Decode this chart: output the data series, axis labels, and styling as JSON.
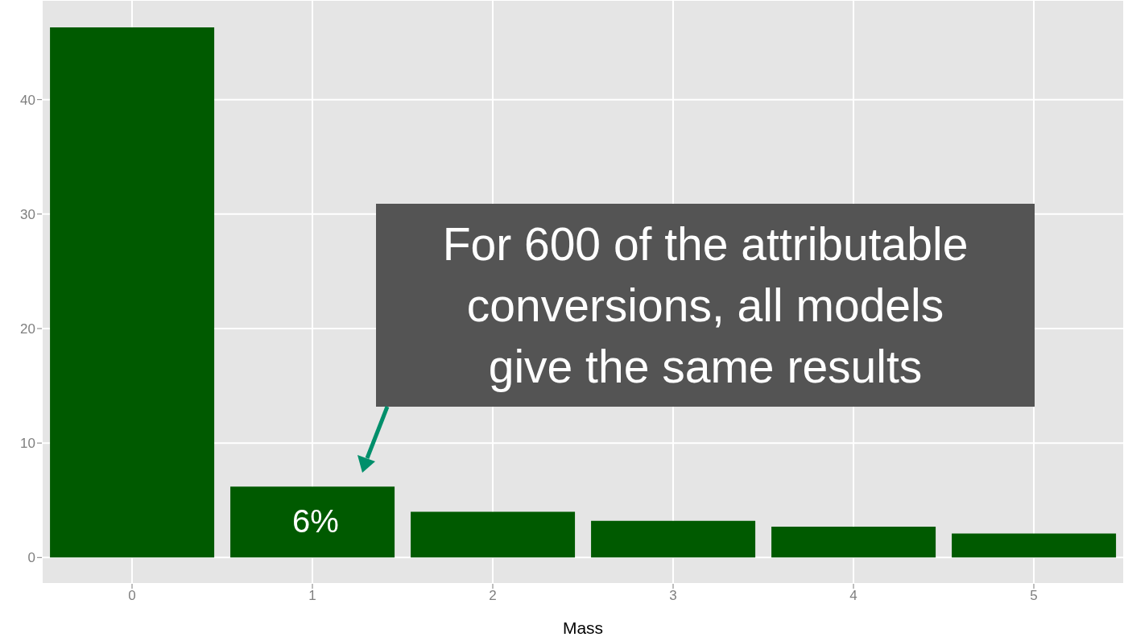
{
  "chart_data": {
    "type": "bar",
    "xlabel": "Mass",
    "categories": [
      "0",
      "1",
      "2",
      "3",
      "4",
      "5"
    ],
    "values": [
      46.3,
      6.2,
      4.0,
      3.2,
      2.7,
      2.1
    ],
    "color": "#005a00",
    "ylim": [
      -2.3,
      48.7
    ],
    "yticks": [
      0,
      10,
      20,
      30,
      40
    ],
    "grid": true,
    "annotations": [
      "6%",
      "For 600 of the attributable conversions, all models give the same results"
    ]
  }
}
